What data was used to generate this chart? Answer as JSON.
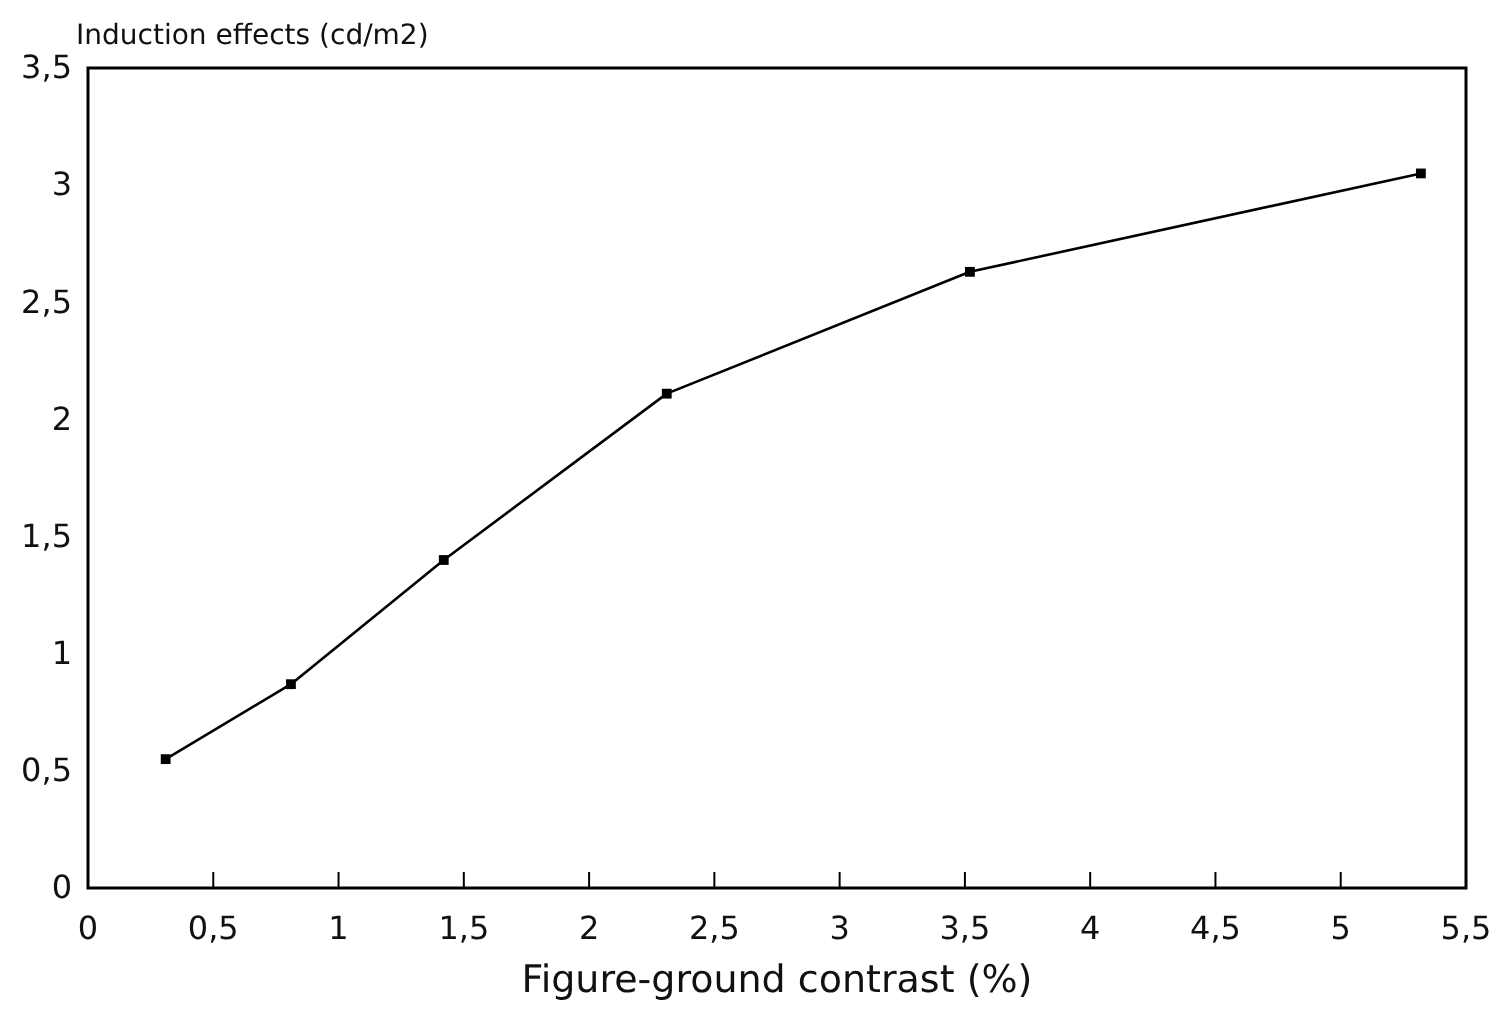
{
  "chart_data": {
    "type": "line",
    "ylabel": "Induction effects (cd/m2)",
    "xlabel": "Figure-ground contrast (%)",
    "x": [
      0.31,
      0.81,
      1.42,
      2.31,
      3.52,
      5.32
    ],
    "values": [
      0.55,
      0.87,
      1.4,
      2.11,
      2.63,
      3.05
    ],
    "color": "#000000",
    "marker": "square",
    "line_style": "solid",
    "xlim": [
      0,
      5.5
    ],
    "xticks": [
      0,
      {
        "value": 0.5,
        "label": "0,5"
      },
      1,
      {
        "value": 1.5,
        "label": "1,5"
      },
      2,
      {
        "value": 2.5,
        "label": "2,5"
      },
      3,
      {
        "value": 3.5,
        "label": "3,5"
      },
      4,
      {
        "value": 4.5,
        "label": "4,5"
      },
      5,
      {
        "value": 5.5,
        "label": "5,5"
      }
    ],
    "ylim": [
      0,
      3.5
    ],
    "yticks": [
      0,
      {
        "value": 0.5,
        "label": "0,5"
      },
      1,
      {
        "value": 1.5,
        "label": "1,5"
      },
      2,
      {
        "value": 2.5,
        "label": "2,5"
      },
      3,
      {
        "value": 3.5,
        "label": "3,5"
      }
    ]
  }
}
